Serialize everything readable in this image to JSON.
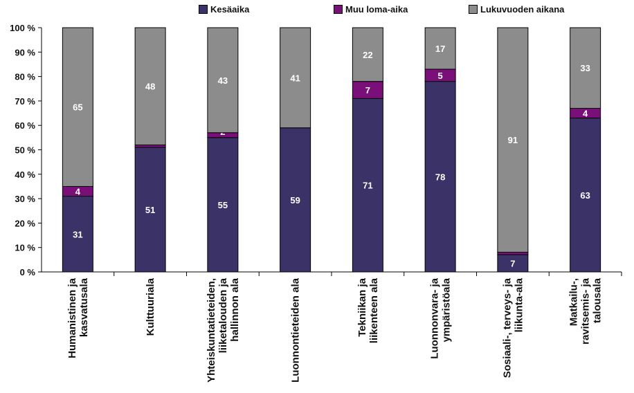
{
  "chart_data": {
    "type": "bar",
    "stacked": true,
    "percent_stacked": true,
    "categories": [
      [
        "Humanistinen ja",
        "kasvatusala"
      ],
      [
        "Kulttuuriala"
      ],
      [
        "Yhteiskuntatieteiden,",
        "liiketalouden ja",
        "hallinnon ala"
      ],
      [
        "Luonnontieteiden ala"
      ],
      [
        "Tekniikan ja",
        "liikenteen ala"
      ],
      [
        "Luonnonvara- ja",
        "ympäristöala"
      ],
      [
        "Sosiaali-, terveys- ja",
        "liikunta-ala"
      ],
      [
        "Matkailu-,",
        "ravitsemis- ja",
        "talousala"
      ]
    ],
    "series": [
      {
        "name": "Kesäaika",
        "color": "#3b3368",
        "values": [
          31,
          51,
          55,
          59,
          71,
          78,
          7,
          63
        ]
      },
      {
        "name": "Muu loma-aika",
        "color": "#7a0f7a",
        "values": [
          4,
          1,
          2,
          0,
          7,
          5,
          1,
          4
        ]
      },
      {
        "name": "Lukuvuoden aikana",
        "color": "#8c8c8c",
        "values": [
          65,
          48,
          43,
          41,
          22,
          17,
          91,
          33
        ]
      }
    ],
    "yticks": [
      "0 %",
      "10 %",
      "20 %",
      "30 %",
      "40 %",
      "50 %",
      "60 %",
      "70 %",
      "80 %",
      "90 %",
      "100 %"
    ],
    "ylim": [
      0,
      100
    ],
    "legend_position": "top",
    "grid": false
  }
}
